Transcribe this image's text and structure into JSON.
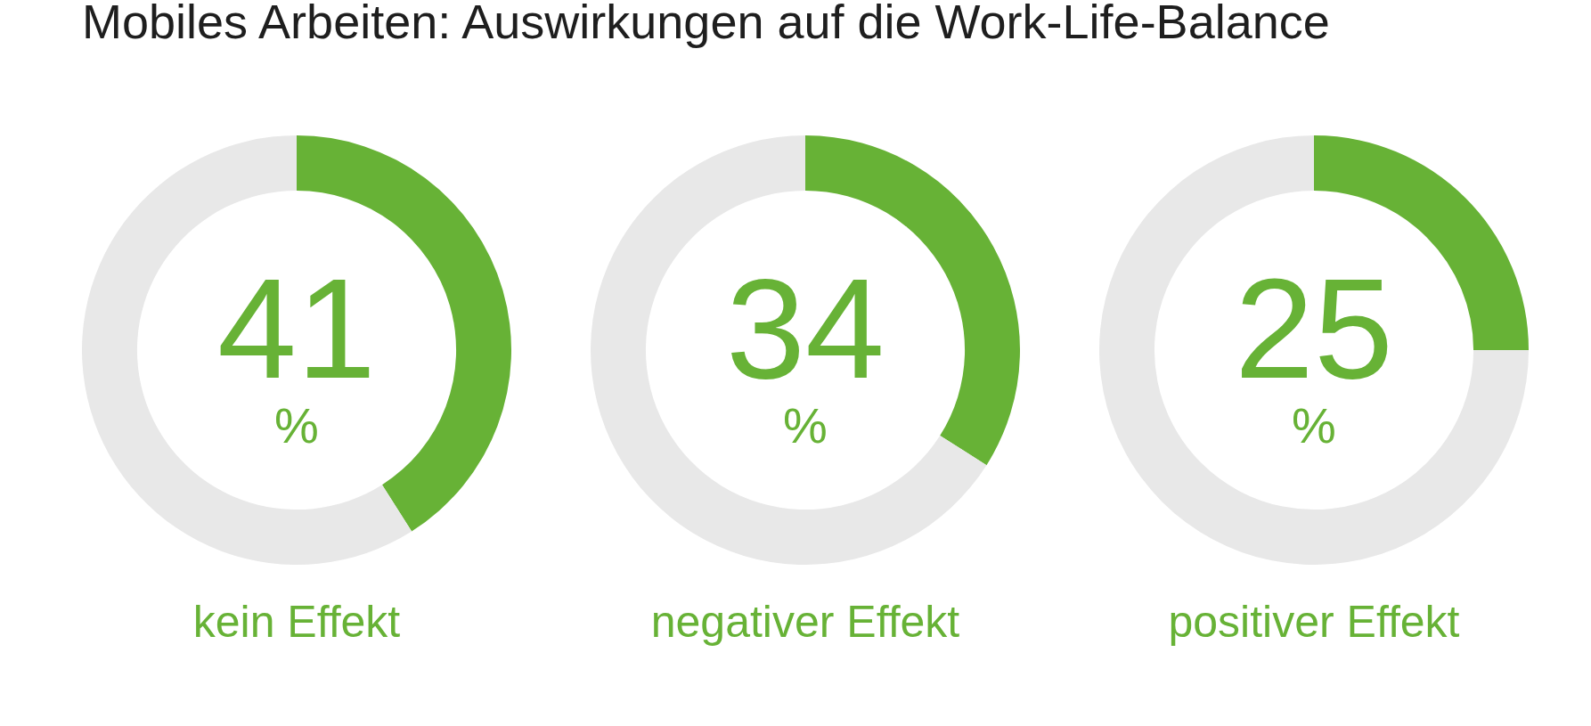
{
  "chart_data": [
    {
      "type": "donut",
      "title": "Mobiles Arbeiten: Auswirkungen auf die Work-Life-Balance",
      "xlabel": "kein Effekt",
      "categories": [
        null,
        null
      ],
      "values": [
        41,
        59
      ],
      "colors": [
        "#67b236",
        "#e8e8e8"
      ],
      "annotations": [
        "41 %"
      ]
    },
    {
      "type": "donut",
      "xlabel": "negativer Effekt",
      "categories": [
        null,
        null
      ],
      "values": [
        34,
        66
      ],
      "colors": [
        "#67b236",
        "#e8e8e8"
      ],
      "annotations": [
        "34 %"
      ]
    },
    {
      "type": "donut",
      "xlabel": "positiver Effekt",
      "categories": [
        null,
        null
      ],
      "values": [
        25,
        75
      ],
      "colors": [
        "#67b236",
        "#e8e8e8"
      ],
      "annotations": [
        "25 %"
      ]
    }
  ]
}
